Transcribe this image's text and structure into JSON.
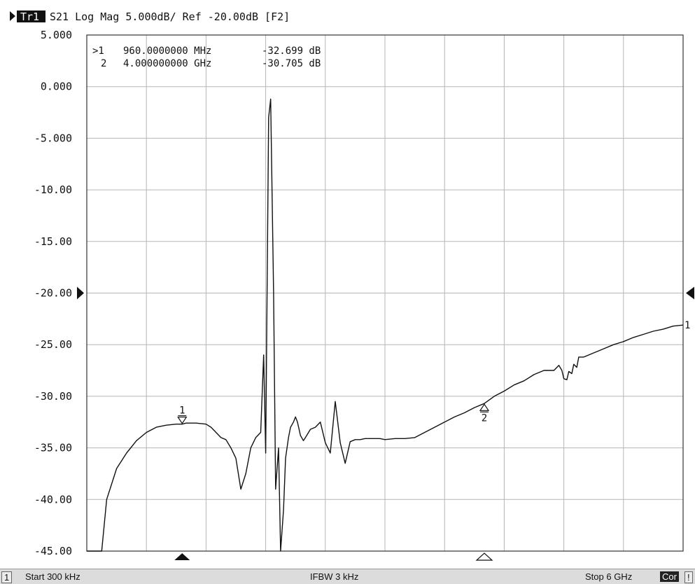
{
  "header": {
    "trace_tag": "Tr1",
    "trace_info": "S21 Log Mag 5.000dB/ Ref -20.00dB [F2]"
  },
  "markers": {
    "readouts": [
      {
        "id": ">1",
        "stimulus": "960.0000000 MHz",
        "value": "-32.699 dB"
      },
      {
        "id": "2",
        "stimulus": "4.000000000 GHz",
        "value": "-30.705 dB"
      }
    ]
  },
  "status": {
    "channel": "1",
    "start": "Start 300 kHz",
    "ifbw": "IFBW 3 kHz",
    "stop": "Stop 6 GHz",
    "cor": "Cor",
    "excl": "!"
  },
  "colors": {
    "trace": "#111111",
    "grid": "#b5b5b5",
    "background": "#ffffff"
  },
  "chart_data": {
    "type": "line",
    "title": "S21 Log Mag 5.000dB/ Ref -20.00dB [F2]",
    "xlabel": "",
    "ylabel": "",
    "x_unit": "GHz",
    "xlim": [
      0.0003,
      6.0
    ],
    "ylim": [
      -45,
      5
    ],
    "y_ticks": [
      "5.000",
      "0.000",
      "-5.000",
      "-10.00",
      "-15.00",
      "-20.00",
      "-25.00",
      "-30.00",
      "-35.00",
      "-40.00",
      "-45.00"
    ],
    "reference_level": -20,
    "grid": true,
    "series": [
      {
        "name": "S21",
        "x": [
          0.0003,
          0.05,
          0.1,
          0.15,
          0.2,
          0.3,
          0.4,
          0.5,
          0.6,
          0.7,
          0.8,
          0.9,
          0.96,
          1.0,
          1.1,
          1.2,
          1.25,
          1.3,
          1.35,
          1.4,
          1.45,
          1.5,
          1.55,
          1.6,
          1.65,
          1.7,
          1.75,
          1.78,
          1.8,
          1.83,
          1.85,
          1.88,
          1.9,
          1.93,
          1.95,
          1.98,
          2.0,
          2.03,
          2.05,
          2.08,
          2.1,
          2.12,
          2.15,
          2.18,
          2.2,
          2.25,
          2.3,
          2.35,
          2.4,
          2.45,
          2.5,
          2.55,
          2.6,
          2.65,
          2.7,
          2.75,
          2.8,
          2.85,
          2.9,
          2.95,
          3.0,
          3.1,
          3.2,
          3.3,
          3.4,
          3.5,
          3.6,
          3.7,
          3.8,
          3.9,
          4.0,
          4.1,
          4.2,
          4.3,
          4.4,
          4.5,
          4.6,
          4.7,
          4.75,
          4.78,
          4.8,
          4.83,
          4.85,
          4.88,
          4.9,
          4.93,
          4.95,
          5.0,
          5.1,
          5.2,
          5.3,
          5.4,
          5.5,
          5.6,
          5.7,
          5.8,
          5.9,
          6.0
        ],
        "values": [
          -45,
          -45,
          -45,
          -45,
          -40,
          -37,
          -35.5,
          -34.3,
          -33.5,
          -33,
          -32.8,
          -32.7,
          -32.7,
          -32.6,
          -32.6,
          -32.7,
          -33,
          -33.5,
          -34,
          -34.2,
          -35,
          -36,
          -39,
          -37.5,
          -35,
          -34,
          -33.5,
          -26,
          -35.5,
          -3,
          -1.2,
          -20,
          -39,
          -35,
          -45,
          -41,
          -36,
          -34,
          -33,
          -32.5,
          -32,
          -32.5,
          -33.8,
          -34.3,
          -34,
          -33.2,
          -33,
          -32.5,
          -34.5,
          -35.5,
          -30.5,
          -34.5,
          -36.5,
          -34.4,
          -34.2,
          -34.2,
          -34.1,
          -34.1,
          -34.1,
          -34.1,
          -34.2,
          -34.1,
          -34.1,
          -34,
          -33.5,
          -33,
          -32.5,
          -32,
          -31.6,
          -31.1,
          -30.7,
          -30,
          -29.5,
          -28.9,
          -28.5,
          -27.9,
          -27.5,
          -27.5,
          -27.0,
          -27.5,
          -28.3,
          -28.4,
          -27.6,
          -27.8,
          -26.9,
          -27.2,
          -26.2,
          -26.2,
          -25.8,
          -25.4,
          -25.0,
          -24.7,
          -24.3,
          -24.0,
          -23.7,
          -23.5,
          -23.2,
          -23.1
        ]
      }
    ],
    "markers": [
      {
        "label": "1",
        "x": 0.96,
        "y": -32.699,
        "active": true
      },
      {
        "label": "2",
        "x": 4.0,
        "y": -30.705,
        "active": false
      }
    ]
  }
}
